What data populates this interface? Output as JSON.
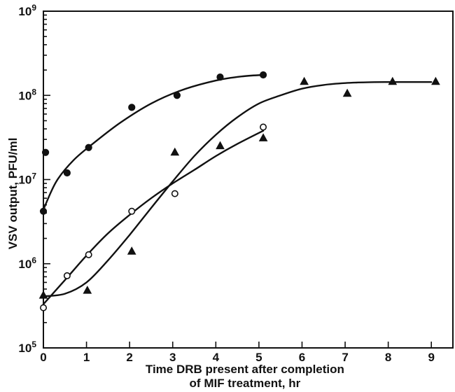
{
  "chart_data": {
    "type": "scatter",
    "y_scale": "log",
    "xlim": [
      0,
      9.5
    ],
    "ylim": [
      100000,
      1000000000
    ],
    "x_ticks": [
      0,
      1,
      2,
      3,
      4,
      5,
      6,
      7,
      8,
      9
    ],
    "x_tick_labels": [
      "0",
      "1",
      "2",
      "3",
      "4",
      "5",
      "6",
      "7",
      "8",
      "9"
    ],
    "y_ticks": [
      100000,
      1000000,
      10000000,
      100000000,
      1000000000
    ],
    "y_tick_labels": [
      {
        "base": "10",
        "exp": "5"
      },
      {
        "base": "10",
        "exp": "6"
      },
      {
        "base": "10",
        "exp": "7"
      },
      {
        "base": "10",
        "exp": "8"
      },
      {
        "base": "10",
        "exp": "9"
      }
    ],
    "ylabel": "VSV output, PFU/ml",
    "xlabel_lines": [
      "Time DRB present after completion",
      "of MIF treatment, hr"
    ],
    "grid": false,
    "series": [
      {
        "marker": "filled-circle",
        "points": [
          [
            0,
            4200000
          ],
          [
            0.05,
            21000000
          ],
          [
            0.55,
            12000000
          ],
          [
            1.05,
            24000000
          ],
          [
            2.05,
            72000000
          ],
          [
            3.1,
            100000000
          ],
          [
            4.1,
            165000000
          ],
          [
            5.1,
            175000000
          ]
        ],
        "curve": [
          [
            0,
            4400000
          ],
          [
            0.3,
            9500000
          ],
          [
            0.7,
            17000000
          ],
          [
            1.2,
            28000000
          ],
          [
            1.8,
            48000000
          ],
          [
            2.5,
            80000000
          ],
          [
            3.2,
            115000000
          ],
          [
            4,
            150000000
          ],
          [
            4.6,
            168000000
          ],
          [
            5.1,
            175000000
          ]
        ]
      },
      {
        "marker": "open-circle",
        "points": [
          [
            0,
            300000
          ],
          [
            0.55,
            720000
          ],
          [
            1.05,
            1280000
          ],
          [
            2.05,
            4200000
          ],
          [
            3.05,
            6800000
          ],
          [
            5.1,
            42000000
          ]
        ],
        "curve": [
          [
            0,
            330000
          ],
          [
            0.5,
            640000
          ],
          [
            1,
            1250000
          ],
          [
            1.5,
            2300000
          ],
          [
            2,
            3800000
          ],
          [
            2.5,
            6000000
          ],
          [
            3,
            9000000
          ],
          [
            3.5,
            13000000
          ],
          [
            4,
            19000000
          ],
          [
            4.5,
            26500000
          ],
          [
            5.1,
            38000000
          ]
        ]
      },
      {
        "marker": "filled-triangle",
        "points": [
          [
            0,
            420000
          ],
          [
            1.02,
            480000
          ],
          [
            2.05,
            1400000
          ],
          [
            3.05,
            21000000
          ],
          [
            4.1,
            25000000
          ],
          [
            5.1,
            31000000
          ],
          [
            6.05,
            145000000
          ],
          [
            7.05,
            105000000
          ],
          [
            8.1,
            145000000
          ],
          [
            9.1,
            145000000
          ]
        ],
        "curve": [
          [
            0,
            410000
          ],
          [
            0.5,
            440000
          ],
          [
            1,
            600000
          ],
          [
            1.5,
            1100000
          ],
          [
            2,
            2200000
          ],
          [
            2.5,
            4600000
          ],
          [
            3,
            9500000
          ],
          [
            3.5,
            19000000
          ],
          [
            4,
            34000000
          ],
          [
            4.5,
            55000000
          ],
          [
            5,
            80000000
          ],
          [
            5.5,
            100000000
          ],
          [
            6,
            120000000
          ],
          [
            6.5,
            133000000
          ],
          [
            7,
            140000000
          ],
          [
            7.5,
            143000000
          ],
          [
            8,
            144000000
          ],
          [
            9,
            144000000
          ]
        ]
      }
    ]
  }
}
